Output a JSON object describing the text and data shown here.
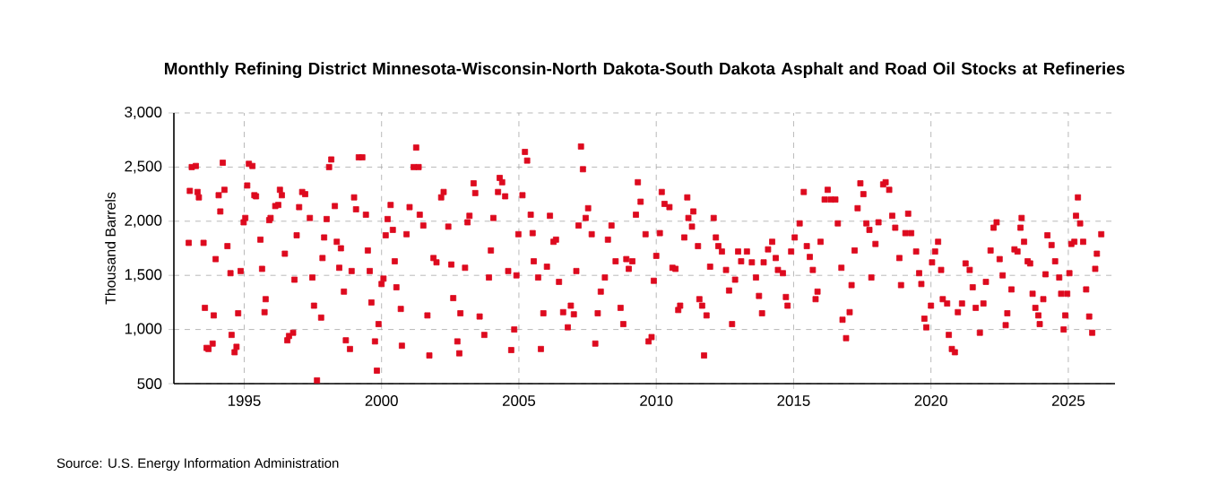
{
  "chart_data": {
    "type": "scatter",
    "title": "Monthly Refining District Minnesota-Wisconsin-North Dakota-South Dakota Asphalt and Road Oil Stocks at Refineries",
    "ylabel": "Thousand Barrels",
    "annotations": [
      "Source: U.S. Energy Information Administration"
    ],
    "marker": "square",
    "grid": true,
    "color": "#dd0a1e",
    "xlim": [
      1992.44,
      2026.7
    ],
    "xticks": [
      1995,
      2000,
      2005,
      2010,
      2015,
      2020,
      2025
    ],
    "ylim": [
      500,
      3000
    ],
    "yticks": [
      500,
      {
        "value": 1000,
        "label": "1,000"
      },
      {
        "value": 1500,
        "label": "1,500"
      },
      {
        "value": 2000,
        "label": "2,000"
      },
      {
        "value": 2500,
        "label": "2,500"
      },
      {
        "value": 3000,
        "label": "3,000"
      }
    ],
    "x": [
      1992.98,
      1993.02,
      1993.09,
      1993.24,
      1993.3,
      1993.35,
      1993.52,
      1993.57,
      1993.63,
      1993.7,
      1993.85,
      1993.89,
      1993.96,
      1994.07,
      1994.13,
      1994.22,
      1994.28,
      1994.39,
      1994.5,
      1994.54,
      1994.65,
      1994.72,
      1994.78,
      1994.87,
      1994.98,
      1995.04,
      1995.11,
      1995.17,
      1995.3,
      1995.37,
      1995.43,
      1995.59,
      1995.65,
      1995.74,
      1995.78,
      1995.91,
      1995.96,
      1996.13,
      1996.24,
      1996.3,
      1996.37,
      1996.48,
      1996.57,
      1996.63,
      1996.78,
      1996.83,
      1996.91,
      1997.0,
      1997.11,
      1997.22,
      1997.39,
      1997.48,
      1997.54,
      1997.65,
      1997.8,
      1997.85,
      1997.91,
      1998.0,
      1998.09,
      1998.17,
      1998.3,
      1998.37,
      1998.46,
      1998.52,
      1998.63,
      1998.7,
      1998.85,
      1998.91,
      1999.0,
      1999.07,
      1999.17,
      1999.3,
      1999.43,
      1999.5,
      1999.57,
      1999.63,
      1999.76,
      1999.83,
      1999.89,
      2000.0,
      2000.07,
      2000.15,
      2000.22,
      2000.33,
      2000.41,
      2000.48,
      2000.54,
      2000.7,
      2000.74,
      2000.91,
      2001.02,
      2001.17,
      2001.26,
      2001.35,
      2001.39,
      2001.52,
      2001.67,
      2001.74,
      2001.89,
      2002.0,
      2002.17,
      2002.26,
      2002.43,
      2002.54,
      2002.61,
      2002.76,
      2002.83,
      2002.87,
      2003.04,
      2003.13,
      2003.2,
      2003.35,
      2003.41,
      2003.57,
      2003.74,
      2003.91,
      2003.98,
      2004.07,
      2004.24,
      2004.3,
      2004.39,
      2004.5,
      2004.61,
      2004.72,
      2004.83,
      2004.91,
      2004.98,
      2005.13,
      2005.22,
      2005.3,
      2005.43,
      2005.5,
      2005.54,
      2005.7,
      2005.8,
      2005.89,
      2006.02,
      2006.13,
      2006.26,
      2006.35,
      2006.46,
      2006.61,
      2006.78,
      2006.89,
      2007.0,
      2007.09,
      2007.17,
      2007.26,
      2007.33,
      2007.43,
      2007.52,
      2007.65,
      2007.78,
      2007.87,
      2007.98,
      2008.13,
      2008.24,
      2008.37,
      2008.52,
      2008.7,
      2008.8,
      2008.91,
      2009.0,
      2009.13,
      2009.26,
      2009.33,
      2009.43,
      2009.61,
      2009.72,
      2009.83,
      2009.91,
      2010.0,
      2010.13,
      2010.2,
      2010.3,
      2010.48,
      2010.59,
      2010.7,
      2010.8,
      2010.87,
      2011.02,
      2011.13,
      2011.17,
      2011.3,
      2011.35,
      2011.52,
      2011.57,
      2011.67,
      2011.74,
      2011.83,
      2011.96,
      2012.09,
      2012.17,
      2012.26,
      2012.39,
      2012.54,
      2012.65,
      2012.76,
      2012.87,
      2012.98,
      2013.09,
      2013.3,
      2013.48,
      2013.63,
      2013.74,
      2013.85,
      2013.91,
      2014.07,
      2014.22,
      2014.35,
      2014.43,
      2014.61,
      2014.72,
      2014.78,
      2014.91,
      2015.04,
      2015.22,
      2015.37,
      2015.48,
      2015.59,
      2015.7,
      2015.8,
      2015.87,
      2015.98,
      2016.13,
      2016.24,
      2016.35,
      2016.52,
      2016.61,
      2016.74,
      2016.78,
      2016.91,
      2017.04,
      2017.11,
      2017.22,
      2017.33,
      2017.43,
      2017.54,
      2017.65,
      2017.76,
      2017.83,
      2017.98,
      2018.09,
      2018.26,
      2018.35,
      2018.48,
      2018.59,
      2018.7,
      2018.85,
      2018.91,
      2019.07,
      2019.17,
      2019.28,
      2019.46,
      2019.57,
      2019.65,
      2019.76,
      2019.83,
      2020.0,
      2020.04,
      2020.15,
      2020.26,
      2020.37,
      2020.43,
      2020.59,
      2020.65,
      2020.76,
      2020.87,
      2020.98,
      2021.13,
      2021.26,
      2021.41,
      2021.52,
      2021.63,
      2021.78,
      2021.91,
      2022.0,
      2022.17,
      2022.28,
      2022.39,
      2022.5,
      2022.61,
      2022.72,
      2022.78,
      2022.93,
      2023.04,
      2023.15,
      2023.26,
      2023.3,
      2023.39,
      2023.52,
      2023.61,
      2023.7,
      2023.8,
      2023.91,
      2023.96,
      2024.09,
      2024.17,
      2024.24,
      2024.39,
      2024.52,
      2024.67,
      2024.74,
      2024.83,
      2024.89,
      2024.96,
      2025.04,
      2025.11,
      2025.22,
      2025.28,
      2025.35,
      2025.43,
      2025.54,
      2025.65,
      2025.76,
      2025.87,
      2025.98,
      2026.04,
      2026.2
    ],
    "values": [
      1800,
      2280,
      2500,
      2510,
      2270,
      2220,
      1800,
      1200,
      830,
      820,
      870,
      1130,
      1650,
      2240,
      2090,
      2540,
      2290,
      1770,
      1520,
      950,
      790,
      840,
      1150,
      1540,
      1990,
      2030,
      2330,
      2530,
      2510,
      2240,
      2230,
      1830,
      1560,
      1160,
      1280,
      2010,
      2030,
      2140,
      2150,
      2290,
      2240,
      1700,
      900,
      940,
      970,
      1460,
      1870,
      2130,
      2270,
      2250,
      2030,
      1480,
      1220,
      530,
      1110,
      1660,
      1850,
      2020,
      2500,
      2570,
      2140,
      1810,
      1570,
      1750,
      1350,
      900,
      820,
      1540,
      2220,
      2110,
      2590,
      2590,
      2060,
      1730,
      1540,
      1250,
      890,
      620,
      1050,
      1420,
      1470,
      1870,
      2020,
      2150,
      1920,
      1630,
      1390,
      1190,
      850,
      1880,
      2130,
      2500,
      2680,
      2500,
      2060,
      1960,
      1130,
      760,
      1660,
      1620,
      2220,
      2270,
      1950,
      1600,
      1290,
      890,
      780,
      1150,
      1570,
      1990,
      2050,
      2350,
      2260,
      1120,
      950,
      1480,
      1730,
      2030,
      2270,
      2400,
      2360,
      2230,
      1540,
      810,
      1000,
      1500,
      1880,
      2240,
      2640,
      2560,
      2060,
      1890,
      1630,
      1480,
      820,
      1150,
      1580,
      2050,
      1810,
      1830,
      1440,
      1160,
      1020,
      1220,
      1140,
      1540,
      1960,
      2690,
      2480,
      2030,
      2120,
      1880,
      870,
      1150,
      1350,
      1480,
      1830,
      1960,
      1630,
      1200,
      1050,
      1650,
      1560,
      1630,
      2060,
      2360,
      2180,
      1880,
      890,
      930,
      1450,
      1680,
      1890,
      2270,
      2160,
      2130,
      1570,
      1560,
      1180,
      1220,
      1850,
      2220,
      2030,
      1950,
      2090,
      1770,
      1280,
      1220,
      760,
      1130,
      1580,
      2030,
      1850,
      1770,
      1720,
      1550,
      1360,
      1050,
      1460,
      1720,
      1630,
      1720,
      1620,
      1480,
      1310,
      1150,
      1620,
      1740,
      1810,
      1660,
      1550,
      1520,
      1300,
      1220,
      1720,
      1850,
      1980,
      2270,
      1770,
      1670,
      1550,
      1280,
      1350,
      1810,
      2200,
      2290,
      2200,
      2200,
      1980,
      1570,
      1090,
      920,
      1160,
      1410,
      1730,
      2120,
      2350,
      2250,
      1980,
      1920,
      1480,
      1790,
      1990,
      2340,
      2360,
      2290,
      2050,
      1940,
      1660,
      1410,
      1890,
      2070,
      1890,
      1720,
      1520,
      1420,
      1100,
      1020,
      1220,
      1620,
      1720,
      1810,
      1550,
      1280,
      1240,
      950,
      820,
      790,
      1160,
      1240,
      1610,
      1550,
      1390,
      1200,
      970,
      1240,
      1440,
      1730,
      1940,
      1990,
      1650,
      1500,
      1040,
      1150,
      1370,
      1740,
      1720,
      1940,
      2030,
      1810,
      1630,
      1610,
      1330,
      1200,
      1130,
      1050,
      1280,
      1510,
      1870,
      1780,
      1630,
      1480,
      1330,
      1000,
      1130,
      1330,
      1520,
      1790,
      1810,
      2050,
      2220,
      1980,
      1810,
      1370,
      1120,
      970,
      1560,
      1700,
      1880
    ]
  }
}
